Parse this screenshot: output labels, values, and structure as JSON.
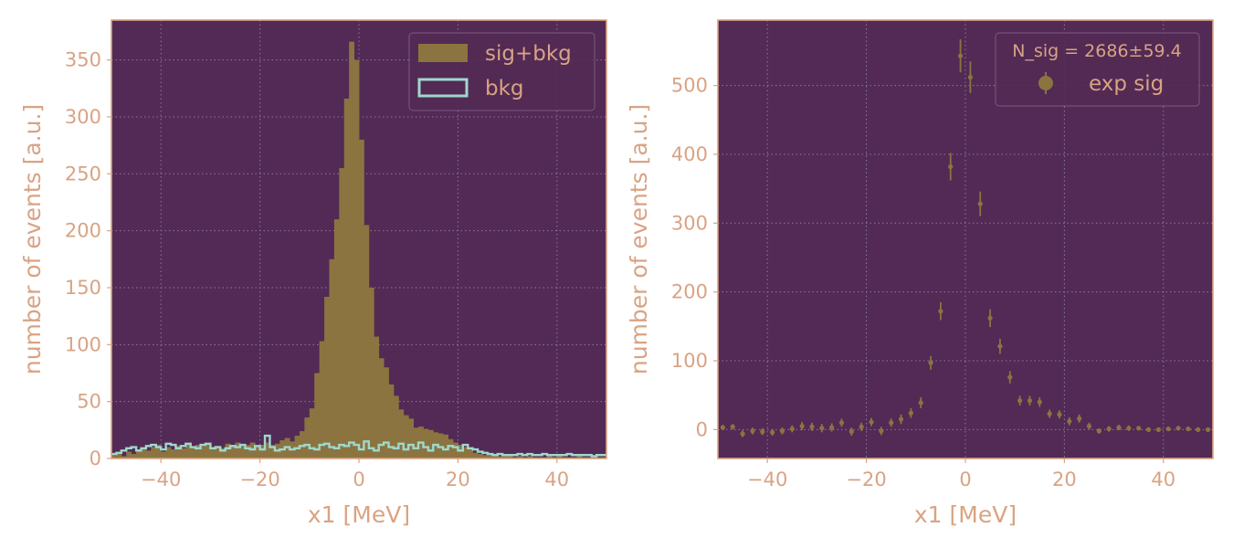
{
  "colors": {
    "axes_bg": "#522a55",
    "frame": "#d9a383",
    "text": "#d9a383",
    "sig_fill": "#8b7440",
    "bkg_line": "#9fd8cc",
    "grid": "#8a7a9a",
    "points": "#8b7440"
  },
  "chart_data": [
    {
      "type": "bar",
      "subtype": "histogram",
      "xlabel": "x1 [MeV]",
      "ylabel": "number of events [a.u.]",
      "xlim": [
        -50,
        50
      ],
      "ylim": [
        0,
        385
      ],
      "xticks": [
        -40,
        -20,
        0,
        20,
        40
      ],
      "xtick_labels": [
        "−40",
        "−20",
        "0",
        "20",
        "40"
      ],
      "yticks": [
        0,
        50,
        100,
        150,
        200,
        250,
        300,
        350
      ],
      "ytick_labels": [
        "0",
        "50",
        "100",
        "150",
        "200",
        "250",
        "300",
        "350"
      ],
      "grid": true,
      "legend": {
        "location": "top-right",
        "entries": [
          {
            "label": "sig+bkg",
            "style": "filled"
          },
          {
            "label": "bkg",
            "style": "step"
          }
        ]
      },
      "bin_edges_start": -50,
      "bin_width": 1,
      "series": [
        {
          "name": "sig+bkg",
          "values": [
            3,
            5,
            2,
            6,
            4,
            8,
            9,
            7,
            10,
            12,
            6,
            10,
            8,
            11,
            9,
            13,
            10,
            12,
            11,
            12,
            10,
            11,
            9,
            13,
            12,
            14,
            11,
            12,
            14,
            11,
            12,
            14,
            12,
            13,
            16,
            18,
            15,
            20,
            24,
            36,
            44,
            75,
            103,
            142,
            175,
            210,
            255,
            316,
            366,
            350,
            280,
            205,
            150,
            107,
            88,
            80,
            65,
            55,
            43,
            38,
            35,
            27,
            28,
            26,
            25,
            23,
            22,
            21,
            17,
            14,
            12,
            10,
            8,
            5,
            4,
            3,
            3,
            2,
            2,
            2,
            2,
            1,
            2,
            1,
            2,
            1,
            1,
            1,
            2,
            1,
            2,
            1,
            1,
            1,
            2,
            1,
            1,
            2,
            1,
            1
          ]
        },
        {
          "name": "bkg",
          "values": [
            4,
            5,
            7,
            9,
            10,
            7,
            9,
            11,
            12,
            10,
            8,
            13,
            12,
            9,
            11,
            13,
            10,
            9,
            12,
            13,
            9,
            10,
            7,
            9,
            11,
            10,
            12,
            9,
            8,
            11,
            8,
            20,
            10,
            7,
            8,
            10,
            8,
            9,
            11,
            12,
            9,
            8,
            12,
            13,
            10,
            9,
            12,
            11,
            14,
            12,
            8,
            15,
            9,
            7,
            12,
            14,
            10,
            9,
            13,
            8,
            12,
            9,
            14,
            10,
            7,
            12,
            10,
            8,
            11,
            10,
            7,
            12,
            9,
            8,
            6,
            5,
            4,
            3,
            4,
            3,
            3,
            3,
            4,
            3,
            4,
            3,
            3,
            4,
            3,
            3,
            3,
            3,
            4,
            3,
            3,
            3,
            3,
            2,
            3,
            3
          ]
        }
      ]
    },
    {
      "type": "scatter",
      "subtype": "errorbar",
      "xlabel": "x1 [MeV]",
      "ylabel": "number of events [a.u.]",
      "xlim": [
        -50,
        50
      ],
      "ylim": [
        -42,
        595
      ],
      "xticks": [
        -40,
        -20,
        0,
        20,
        40
      ],
      "xtick_labels": [
        "−40",
        "−20",
        "0",
        "20",
        "40"
      ],
      "yticks": [
        0,
        100,
        200,
        300,
        400,
        500
      ],
      "ytick_labels": [
        "0",
        "100",
        "200",
        "300",
        "400",
        "500"
      ],
      "grid": true,
      "annotation": "N_sig = 2686±59.4",
      "legend": {
        "location": "top-right",
        "entries": [
          {
            "label": "exp sig",
            "style": "errorbar"
          }
        ]
      },
      "series": [
        {
          "name": "exp sig",
          "x": [
            -49,
            -47,
            -45,
            -43,
            -41,
            -39,
            -37,
            -35,
            -33,
            -31,
            -29,
            -27,
            -25,
            -23,
            -21,
            -19,
            -17,
            -15,
            -13,
            -11,
            -9,
            -7,
            -5,
            -3,
            -1,
            1,
            3,
            5,
            7,
            9,
            11,
            13,
            15,
            17,
            19,
            21,
            23,
            25,
            27,
            29,
            31,
            33,
            35,
            37,
            39,
            41,
            43,
            45,
            47,
            49
          ],
          "y": [
            3,
            4,
            -6,
            -2,
            -3,
            -4,
            -2,
            1,
            5,
            4,
            2,
            3,
            10,
            -3,
            4,
            11,
            -2,
            10,
            15,
            24,
            39,
            97,
            172,
            382,
            543,
            512,
            328,
            162,
            121,
            76,
            42,
            42,
            40,
            23,
            22,
            12,
            16,
            5,
            -2,
            1,
            3,
            2,
            2,
            0,
            0,
            1,
            2,
            1,
            0,
            0
          ],
          "yerr": [
            4,
            4,
            5,
            5,
            5,
            5,
            5,
            5,
            6,
            6,
            6,
            6,
            6,
            6,
            6,
            6,
            6,
            6,
            7,
            7,
            8,
            10,
            13,
            20,
            24,
            23,
            18,
            13,
            11,
            9,
            7,
            7,
            7,
            6,
            6,
            6,
            6,
            5,
            4,
            4,
            4,
            4,
            3,
            3,
            3,
            3,
            3,
            3,
            3,
            3
          ]
        }
      ]
    }
  ]
}
